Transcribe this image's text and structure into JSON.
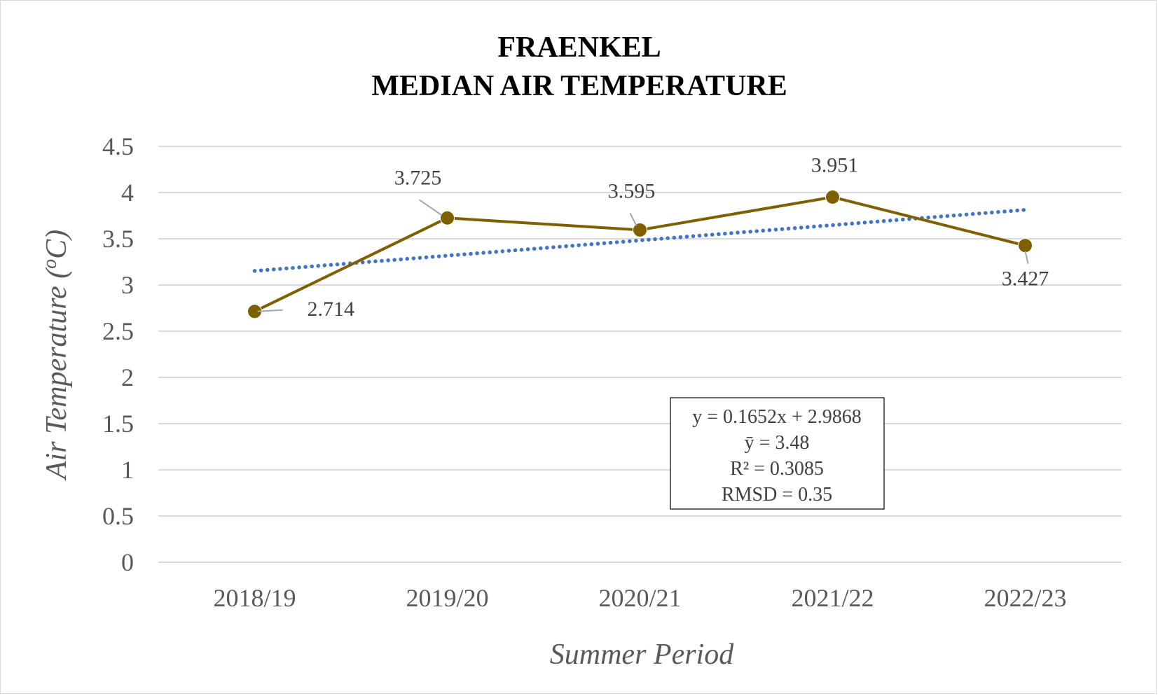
{
  "chart_data": {
    "type": "line",
    "title": [
      "FRAENKEL",
      "MEDIAN AIR TEMPERATURE"
    ],
    "xlabel": "Summer Period",
    "ylabel": "Air Temperature (oC)",
    "ylabel_parts": {
      "before": "Air Temperature (",
      "sup": "o",
      "after": "C)"
    },
    "categories": [
      "2018/19",
      "2019/20",
      "2020/21",
      "2021/22",
      "2022/23"
    ],
    "series": [
      {
        "values": [
          2.714,
          3.725,
          3.595,
          3.951,
          3.427
        ],
        "color": "#7f6000",
        "data_labels": [
          "2.714",
          "3.725",
          "3.595",
          "3.951",
          "3.427"
        ]
      }
    ],
    "trendline": {
      "type": "linear",
      "slope": 0.1652,
      "intercept": 2.9868,
      "color": "#4472c4",
      "style": "dotted"
    },
    "stats": [
      "y = 0.1652x + 2.9868",
      "ȳ = 3.48",
      "R² = 0.3085",
      "RMSD = 0.35"
    ],
    "ylim": [
      0,
      4.5
    ],
    "yticks": [
      "0",
      "0.5",
      "1",
      "1.5",
      "2",
      "2.5",
      "3",
      "3.5",
      "4",
      "4.5"
    ],
    "grid": true,
    "legend": "none",
    "gridline_color": "#d9d9d9"
  }
}
